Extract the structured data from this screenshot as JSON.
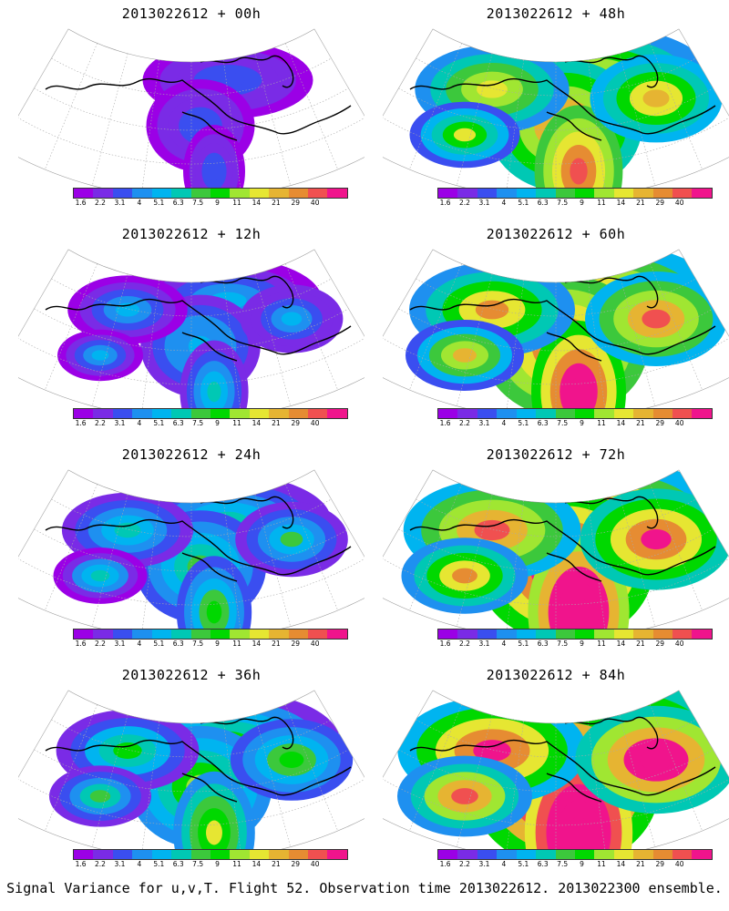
{
  "panels": [
    {
      "title": "2013022612 + 00h",
      "level": 0
    },
    {
      "title": "2013022612 + 48h",
      "level": 4
    },
    {
      "title": "2013022612 + 12h",
      "level": 1
    },
    {
      "title": "2013022612 + 60h",
      "level": 5
    },
    {
      "title": "2013022612 + 24h",
      "level": 2
    },
    {
      "title": "2013022612 + 72h",
      "level": 6
    },
    {
      "title": "2013022612 + 36h",
      "level": 3
    },
    {
      "title": "2013022612 + 84h",
      "level": 7
    }
  ],
  "colorbar": {
    "labels": [
      "1.6",
      "2.2",
      "3.1",
      "4",
      "5.1",
      "6.3",
      "7.5",
      "9",
      "11",
      "14",
      "21",
      "29",
      "40"
    ],
    "colors": [
      "#9b00e6",
      "#7a2be6",
      "#3a4ef0",
      "#1e90f0",
      "#00b4f0",
      "#00c8b4",
      "#3cc83c",
      "#00d800",
      "#a0e632",
      "#e6e632",
      "#e6b432",
      "#e68c32",
      "#f05050",
      "#f0148c"
    ]
  },
  "footer": "Signal Variance for u,v,T. Flight 52. Observation time 2013022612. 2013022300 ensemble."
}
